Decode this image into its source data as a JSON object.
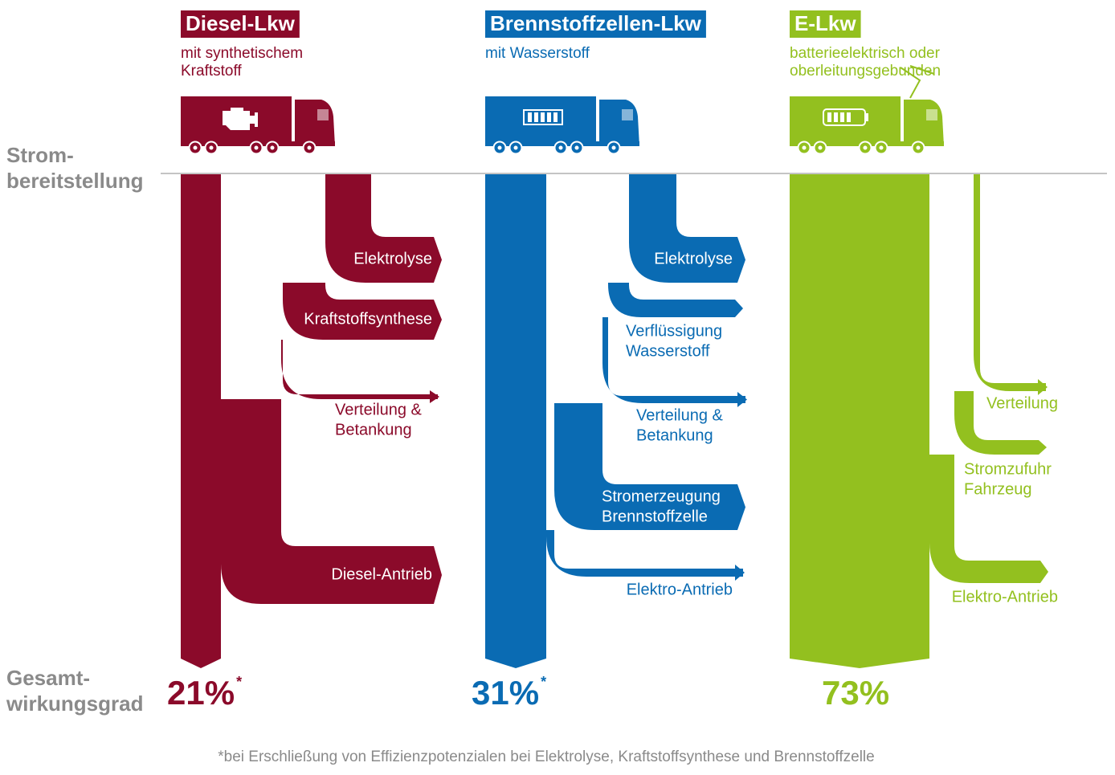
{
  "row_labels": {
    "top": [
      "Strom-",
      "bereitstellung"
    ],
    "bottom": [
      "Gesamt-",
      "wirkungsgrad"
    ]
  },
  "columns": [
    {
      "title": "Diesel-Lkw",
      "subtitle": [
        "mit synthetischem",
        "Kraftstoff"
      ],
      "color": "#8b0a2a",
      "losses": [
        {
          "lines": [
            "Elektrolyse"
          ]
        },
        {
          "lines": [
            "Kraftstoffsynthese"
          ]
        },
        {
          "lines": [
            "Verteilung &",
            "Betankung"
          ]
        },
        {
          "lines": [
            "Diesel-Antrieb"
          ]
        }
      ],
      "efficiency": "21%",
      "marker": "*"
    },
    {
      "title": "Brennstoffzellen-Lkw",
      "subtitle": [
        "mit Wasserstoff"
      ],
      "color": "#0a6bb3",
      "losses": [
        {
          "lines": [
            "Elektrolyse"
          ]
        },
        {
          "lines": [
            "Verflüssigung",
            "Wasserstoff"
          ]
        },
        {
          "lines": [
            "Verteilung &",
            "Betankung"
          ]
        },
        {
          "lines": [
            "Stromerzeugung",
            "Brennstoffzelle"
          ]
        },
        {
          "lines": [
            "Elektro-Antrieb"
          ]
        }
      ],
      "efficiency": "31%",
      "marker": "*"
    },
    {
      "title": "E-Lkw",
      "subtitle": [
        "batterieelektrisch oder",
        "oberleitungsgebunden"
      ],
      "color": "#93c01f",
      "losses": [
        {
          "lines": [
            "Verteilung"
          ]
        },
        {
          "lines": [
            "Stromzufuhr",
            "Fahrzeug"
          ]
        },
        {
          "lines": [
            "Elektro-Antrieb"
          ]
        }
      ],
      "efficiency": "73%"
    }
  ],
  "footnote": "*bei Erschließung von Effizienzpotenzialen bei Elektrolyse, Kraftstoffsynthese und Brennstoffzelle"
}
